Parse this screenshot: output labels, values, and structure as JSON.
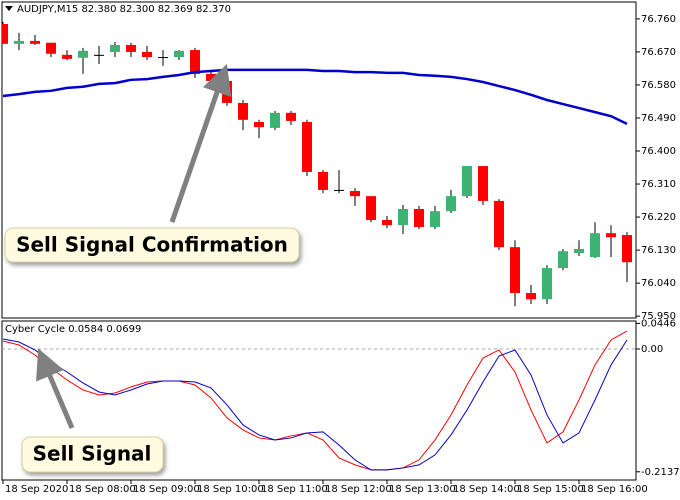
{
  "chart_data": [
    {
      "type": "candlestick",
      "title": "AUDJPY,M15  82.380 82.300 82.369 82.370",
      "annotation": "Sell Signal Confirmation",
      "open": [
        76.746,
        76.692,
        76.7,
        76.695,
        76.662,
        76.654,
        76.662,
        76.67,
        76.689,
        76.67,
        76.656,
        76.656,
        76.675,
        76.61,
        76.591,
        76.531,
        76.479,
        76.463,
        76.504,
        76.479,
        76.343,
        76.294,
        76.291,
        76.277,
        76.212,
        76.198,
        76.242,
        76.193,
        76.236,
        76.277,
        76.359,
        76.264,
        76.138,
        76.013,
        75.996,
        76.081,
        76.122,
        76.111,
        76.176,
        76.171
      ],
      "high": [
        76.752,
        76.722,
        76.716,
        76.695,
        76.675,
        76.681,
        76.686,
        76.697,
        76.695,
        76.686,
        76.675,
        76.675,
        76.681,
        76.621,
        76.61,
        76.539,
        76.485,
        76.509,
        76.509,
        76.485,
        76.348,
        76.348,
        76.299,
        76.277,
        76.223,
        76.253,
        76.25,
        76.25,
        76.294,
        76.359,
        76.359,
        76.269,
        76.157,
        76.035,
        76.089,
        76.133,
        76.157,
        76.206,
        76.198,
        76.179
      ],
      "low": [
        76.692,
        76.675,
        76.689,
        76.656,
        76.648,
        76.61,
        76.637,
        76.656,
        76.656,
        76.648,
        76.632,
        76.648,
        76.599,
        76.58,
        76.523,
        76.457,
        76.435,
        76.457,
        76.471,
        76.332,
        76.285,
        76.285,
        76.25,
        76.206,
        76.19,
        76.174,
        76.187,
        76.187,
        76.231,
        76.272,
        76.253,
        76.13,
        75.977,
        75.983,
        75.983,
        76.075,
        76.114,
        76.108,
        76.111,
        76.043
      ],
      "close": [
        76.692,
        76.7,
        76.692,
        76.665,
        76.651,
        76.673,
        76.662,
        76.689,
        76.67,
        76.656,
        76.656,
        76.673,
        76.61,
        76.591,
        76.531,
        76.485,
        76.465,
        76.504,
        76.482,
        76.343,
        76.294,
        76.294,
        76.277,
        76.212,
        76.198,
        76.242,
        76.193,
        76.236,
        76.277,
        76.359,
        76.264,
        76.138,
        76.013,
        75.996,
        76.081,
        76.127,
        76.133,
        76.176,
        76.165,
        76.097
      ],
      "up_color": "#3cb371",
      "down_color": "#ff0000",
      "doji_color": "#000000",
      "moving_average": {
        "color": "#0000cc",
        "values": [
          76.55,
          76.555,
          76.561,
          76.564,
          76.572,
          76.575,
          76.583,
          76.585,
          76.594,
          76.596,
          76.602,
          76.607,
          76.615,
          76.618,
          76.621,
          76.621,
          76.621,
          76.621,
          76.621,
          76.621,
          76.618,
          76.618,
          76.615,
          76.615,
          76.613,
          76.613,
          76.607,
          76.605,
          76.602,
          76.596,
          76.588,
          76.577,
          76.566,
          76.553,
          76.539,
          76.528,
          76.517,
          76.506,
          76.495,
          76.474
        ]
      },
      "ylim": [
        75.945,
        76.806
      ],
      "yticks": [
        {
          "value": 76.76,
          "label": "76.760"
        },
        {
          "value": 76.67,
          "label": "76.670"
        },
        {
          "value": 76.58,
          "label": "76.580"
        },
        {
          "value": 76.49,
          "label": "76.490"
        },
        {
          "value": 76.4,
          "label": "76.400"
        },
        {
          "value": 76.31,
          "label": "76.310"
        },
        {
          "value": 76.22,
          "label": "76.220"
        },
        {
          "value": 76.13,
          "label": "76.130"
        },
        {
          "value": 76.04,
          "label": "76.040"
        },
        {
          "value": 75.95,
          "label": "75.950"
        }
      ]
    },
    {
      "type": "line",
      "title": "Cyber Cycle 0.0584 0.0699",
      "annotation": "Sell Signal",
      "categories": [
        "18 Sep 2020",
        null,
        null,
        null,
        "18 Sep 08:00",
        null,
        null,
        null,
        "18 Sep 09:00",
        null,
        null,
        null,
        "18 Sep 10:00",
        null,
        null,
        null,
        "18 Sep 11:00",
        null,
        null,
        null,
        "18 Sep 12:00",
        null,
        null,
        null,
        "18 Sep 13:00",
        null,
        null,
        null,
        "18 Sep 14:00",
        null,
        null,
        null,
        "18 Sep 15:00",
        null,
        null,
        null,
        "18 Sep 16:00",
        null,
        null,
        null
      ],
      "series": [
        {
          "color": "#ff0000",
          "values": [
            0.0139,
            0.007,
            -0.0104,
            -0.033,
            -0.0539,
            -0.0713,
            -0.08,
            -0.0765,
            -0.0661,
            -0.0574,
            -0.0557,
            -0.0557,
            -0.0626,
            -0.0852,
            -0.12,
            -0.1409,
            -0.1548,
            -0.1583,
            -0.1513,
            -0.1461,
            -0.1583,
            -0.1896,
            -0.2017,
            -0.2104,
            -0.2104,
            -0.207,
            -0.193,
            -0.1583,
            -0.1148,
            -0.0626,
            -0.0157,
            -0.0017,
            -0.04,
            -0.1061,
            -0.1635,
            -0.1443,
            -0.0887,
            -0.0278,
            0.0157,
            0.0313
          ]
        },
        {
          "color": "#0000cc",
          "values": [
            0.0174,
            0.0122,
            -0.0017,
            -0.0226,
            -0.04,
            -0.0591,
            -0.0748,
            -0.08,
            -0.0713,
            -0.0609,
            -0.0557,
            -0.0557,
            -0.0574,
            -0.0678,
            -0.0974,
            -0.1322,
            -0.1496,
            -0.1583,
            -0.1548,
            -0.1461,
            -0.1443,
            -0.167,
            -0.193,
            -0.2104,
            -0.2104,
            -0.207,
            -0.2017,
            -0.1843,
            -0.1496,
            -0.1061,
            -0.0574,
            -0.0122,
            -0.0017,
            -0.0452,
            -0.1148,
            -0.1635,
            -0.1461,
            -0.0887,
            -0.0278,
            0.0157
          ]
        }
      ],
      "ylim": [
        -0.228,
        0.047
      ],
      "yticks": [
        0.0446,
        {
          "value": 0,
          "label": "0.00"
        },
        -0.2137
      ]
    }
  ]
}
